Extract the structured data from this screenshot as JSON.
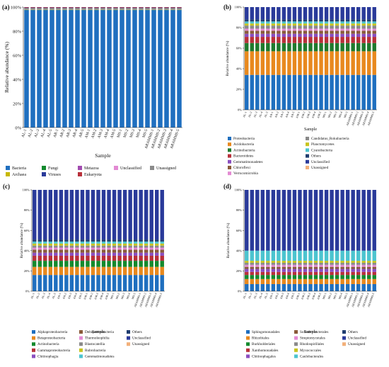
{
  "samples": [
    "AL-1",
    "AL-2",
    "AL-3",
    "AL-4",
    "AL-5",
    "AR-1",
    "AR-2",
    "AR-3",
    "AR-4",
    "AR-5",
    "AM-1",
    "AM-2",
    "AM-3",
    "AM-4",
    "AM-5",
    "MS-1",
    "MS-2",
    "MS-3",
    "MS-4",
    "MS-5",
    "ARAMMS-1",
    "ARAMMS-2",
    "ARAMMS-3",
    "ARAMMS-4",
    "ARAMMS-5"
  ],
  "chart_data": [
    {
      "type": "bar",
      "stacked": true,
      "panel_label": "(a)",
      "xlabel": "Sample",
      "ylabel": "Relative abundance (%)",
      "ylim": [
        0,
        100
      ],
      "yticks": [
        "0%",
        "20%",
        "40%",
        "60%",
        "80%",
        "100%"
      ],
      "legend_position": "bottom",
      "legend_columns": 5,
      "series": [
        {
          "name": "Bacteria",
          "color": "#1f6fbf",
          "value": 97.5
        },
        {
          "name": "Fungi",
          "color": "#138a2e",
          "value": 0.4
        },
        {
          "name": "Metazoa",
          "color": "#a24bb0",
          "value": 0.2
        },
        {
          "name": "Unclassified",
          "color": "#e38ad3",
          "value": 0.3
        },
        {
          "name": "Unassigned",
          "color": "#8a8a8a",
          "value": 0.2
        },
        {
          "name": "Archaea",
          "color": "#c7b800",
          "value": 0.3
        },
        {
          "name": "Viruses",
          "color": "#2b3b9a",
          "value": 0.6
        },
        {
          "name": "Eukaryota",
          "color": "#b8303a",
          "value": 0.5
        }
      ]
    },
    {
      "type": "bar",
      "stacked": true,
      "panel_label": "(b)",
      "xlabel": "Sample",
      "ylabel": "Relative abundance (%)",
      "ylim": [
        0,
        100
      ],
      "yticks": [
        "0%",
        "20%",
        "40%",
        "60%",
        "80%",
        "100%"
      ],
      "legend_position": "bottom",
      "legend_columns": 2,
      "series": [
        {
          "name": "Proteobacteria",
          "color": "#1f6fbf",
          "value": 34
        },
        {
          "name": "Acidobacteria",
          "color": "#e8891e",
          "value": 23
        },
        {
          "name": "Actinobacteria",
          "color": "#1f7a2e",
          "value": 8
        },
        {
          "name": "Bacteroidetes",
          "color": "#b8303a",
          "value": 6
        },
        {
          "name": "Gemmatimonadetes",
          "color": "#8a4ec0",
          "value": 3
        },
        {
          "name": "Chloroflexi",
          "color": "#8a5a3a",
          "value": 3
        },
        {
          "name": "Verrucomicrobia",
          "color": "#e38ad3",
          "value": 2
        },
        {
          "name": "Candidatus_Rokubacteria",
          "color": "#8a8a8a",
          "value": 3
        },
        {
          "name": "Planctomycetes",
          "color": "#c7c41e",
          "value": 2
        },
        {
          "name": "Cyanobacteria",
          "color": "#4cc4cf",
          "value": 2
        },
        {
          "name": "Others",
          "color": "#1f3d6f",
          "value": 2
        },
        {
          "name": "Unclassified",
          "color": "#2a3a9a",
          "value": 12
        },
        {
          "name": "Unassigned",
          "color": "#f2b07a",
          "value": 0
        }
      ]
    },
    {
      "type": "bar",
      "stacked": true,
      "panel_label": "(c)",
      "xlabel": "Sample",
      "ylabel": "Relative abundance (%)",
      "ylim": [
        0,
        100
      ],
      "yticks": [
        "0%",
        "20%",
        "40%",
        "60%",
        "80%",
        "100%"
      ],
      "legend_position": "bottom",
      "legend_columns": 3,
      "series": [
        {
          "name": "Alphaproteobacteria",
          "color": "#1f6fbf",
          "value": 16
        },
        {
          "name": "Betaproteobacteria",
          "color": "#e8891e",
          "value": 8
        },
        {
          "name": "Actinobacteria",
          "color": "#138a2e",
          "value": 6
        },
        {
          "name": "Gammaproteobacteria",
          "color": "#b8303a",
          "value": 5
        },
        {
          "name": "Chitinophagia",
          "color": "#8a4ec0",
          "value": 3
        },
        {
          "name": "Deltaproteobacteria",
          "color": "#8a5a3a",
          "value": 3
        },
        {
          "name": "Thermoleophilia",
          "color": "#e38ad3",
          "value": 2
        },
        {
          "name": "Blastocatellia",
          "color": "#8a8a8a",
          "value": 2
        },
        {
          "name": "Rubrobacteria",
          "color": "#c7c41e",
          "value": 2
        },
        {
          "name": "Gemmatimonadetes",
          "color": "#4cc4cf",
          "value": 2
        },
        {
          "name": "Others",
          "color": "#1f3d6f",
          "value": 2
        },
        {
          "name": "Unclassified",
          "color": "#2a3a9a",
          "value": 49
        },
        {
          "name": "Unassigned",
          "color": "#f2b07a",
          "value": 0
        }
      ]
    },
    {
      "type": "bar",
      "stacked": true,
      "panel_label": "(d)",
      "xlabel": "Sample",
      "ylabel": "Relative abundance (%)",
      "ylim": [
        0,
        100
      ],
      "yticks": [
        "0%",
        "20%",
        "40%",
        "60%",
        "80%",
        "100%"
      ],
      "legend_position": "bottom",
      "legend_columns": 3,
      "series": [
        {
          "name": "Sphingomonadales",
          "color": "#1f6fbf",
          "value": 7
        },
        {
          "name": "Rhizobiales",
          "color": "#e8891e",
          "value": 5
        },
        {
          "name": "Burkholderiales",
          "color": "#138a2e",
          "value": 4
        },
        {
          "name": "Xanthomonadales",
          "color": "#b8303a",
          "value": 3
        },
        {
          "name": "Chitinophagales",
          "color": "#8a4ec0",
          "value": 3
        },
        {
          "name": "Solirubrobacterales",
          "color": "#8a5a3a",
          "value": 2
        },
        {
          "name": "Streptomycetales",
          "color": "#e38ad3",
          "value": 2
        },
        {
          "name": "Rhodospirillales",
          "color": "#8a8a8a",
          "value": 2
        },
        {
          "name": "Myxococcales",
          "color": "#c7c41e",
          "value": 2
        },
        {
          "name": "Caulobacterales",
          "color": "#4cc4cf",
          "value": 10
        },
        {
          "name": "Others",
          "color": "#1f3d6f",
          "value": 0
        },
        {
          "name": "Unclassified",
          "color": "#2a3a9a",
          "value": 60
        },
        {
          "name": "Unassigned",
          "color": "#f2b07a",
          "value": 0
        }
      ]
    }
  ]
}
